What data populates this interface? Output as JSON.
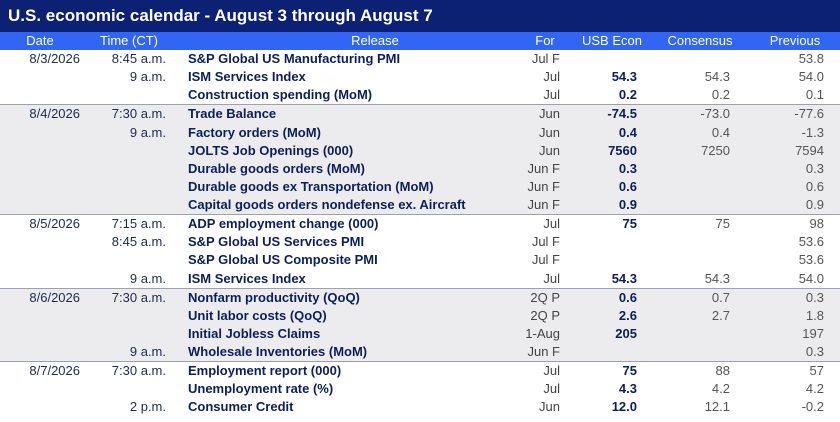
{
  "title": "U.S. economic calendar - August 3 through August 7",
  "headers": {
    "date": "Date",
    "time": "Time (CT)",
    "release": "Release",
    "for": "For",
    "usb": "USB Econ",
    "consensus": "Consensus",
    "previous": "Previous"
  },
  "rows": [
    {
      "date": "8/3/2026",
      "time": "8:45 a.m.",
      "release": "S&P Global US Manufacturing PMI",
      "for": "Jul F",
      "usb": "",
      "consensus": "",
      "previous": "53.8",
      "shade": false,
      "sep": false
    },
    {
      "date": "",
      "time": "9 a.m.",
      "release": "ISM Services Index",
      "for": "Jul",
      "usb": "54.3",
      "consensus": "54.3",
      "previous": "54.0",
      "shade": false,
      "sep": false
    },
    {
      "date": "",
      "time": "",
      "release": "Construction spending (MoM)",
      "for": "Jul",
      "usb": "0.2",
      "consensus": "0.2",
      "previous": "0.1",
      "shade": false,
      "sep": false
    },
    {
      "date": "8/4/2026",
      "time": "7:30 a.m.",
      "release": "Trade Balance",
      "for": "Jun",
      "usb": "-74.5",
      "consensus": "-73.0",
      "previous": "-77.6",
      "shade": true,
      "sep": true
    },
    {
      "date": "",
      "time": "9 a.m.",
      "release": "Factory orders (MoM)",
      "for": "Jun",
      "usb": "0.4",
      "consensus": "0.4",
      "previous": "-1.3",
      "shade": true,
      "sep": false
    },
    {
      "date": "",
      "time": "",
      "release": "JOLTS Job Openings (000)",
      "for": "Jun",
      "usb": "7560",
      "consensus": "7250",
      "previous": "7594",
      "shade": true,
      "sep": false
    },
    {
      "date": "",
      "time": "",
      "release": "Durable goods orders (MoM)",
      "for": "Jun F",
      "usb": "0.3",
      "consensus": "",
      "previous": "0.3",
      "shade": true,
      "sep": false
    },
    {
      "date": "",
      "time": "",
      "release": "Durable goods ex Transportation (MoM)",
      "for": "Jun F",
      "usb": "0.6",
      "consensus": "",
      "previous": "0.6",
      "shade": true,
      "sep": false
    },
    {
      "date": "",
      "time": "",
      "release": "Capital goods orders nondefense ex. Aircraft",
      "for": "Jun F",
      "usb": "0.9",
      "consensus": "",
      "previous": "0.9",
      "shade": true,
      "sep": false
    },
    {
      "date": "8/5/2026",
      "time": "7:15 a.m.",
      "release": "ADP employment change (000)",
      "for": "Jul",
      "usb": "75",
      "consensus": "75",
      "previous": "98",
      "shade": false,
      "sep": true
    },
    {
      "date": "",
      "time": "8:45 a.m.",
      "release": "S&P Global US Services PMI",
      "for": "Jul F",
      "usb": "",
      "consensus": "",
      "previous": "53.6",
      "shade": false,
      "sep": false
    },
    {
      "date": "",
      "time": "",
      "release": "S&P Global US Composite PMI",
      "for": "Jul F",
      "usb": "",
      "consensus": "",
      "previous": "53.6",
      "shade": false,
      "sep": false
    },
    {
      "date": "",
      "time": "9 a.m.",
      "release": "ISM Services Index",
      "for": "Jul",
      "usb": "54.3",
      "consensus": "54.3",
      "previous": "54.0",
      "shade": false,
      "sep": false
    },
    {
      "date": "8/6/2026",
      "time": "7:30 a.m.",
      "release": "Nonfarm productivity (QoQ)",
      "for": "2Q P",
      "usb": "0.6",
      "consensus": "0.7",
      "previous": "0.3",
      "shade": true,
      "sep": true
    },
    {
      "date": "",
      "time": "",
      "release": "Unit labor costs (QoQ)",
      "for": "2Q P",
      "usb": "2.6",
      "consensus": "2.7",
      "previous": "1.8",
      "shade": true,
      "sep": false
    },
    {
      "date": "",
      "time": "",
      "release": "Initial Jobless Claims",
      "for": "1-Aug",
      "usb": "205",
      "consensus": "",
      "previous": "197",
      "shade": true,
      "sep": false
    },
    {
      "date": "",
      "time": "9 a.m.",
      "release": "Wholesale Inventories (MoM)",
      "for": "Jun F",
      "usb": "",
      "consensus": "",
      "previous": "0.3",
      "shade": true,
      "sep": false
    },
    {
      "date": "8/7/2026",
      "time": "7:30 a.m.",
      "release": "Employment report (000)",
      "for": "Jul",
      "usb": "75",
      "consensus": "88",
      "previous": "57",
      "shade": false,
      "sep": true
    },
    {
      "date": "",
      "time": "",
      "release": "Unemployment rate (%)",
      "for": "Jul",
      "usb": "4.3",
      "consensus": "4.2",
      "previous": "4.2",
      "shade": false,
      "sep": false
    },
    {
      "date": "",
      "time": "2 p.m.",
      "release": "Consumer Credit",
      "for": "Jun",
      "usb": "12.0",
      "consensus": "12.1",
      "previous": "-0.2",
      "shade": false,
      "sep": false
    }
  ]
}
